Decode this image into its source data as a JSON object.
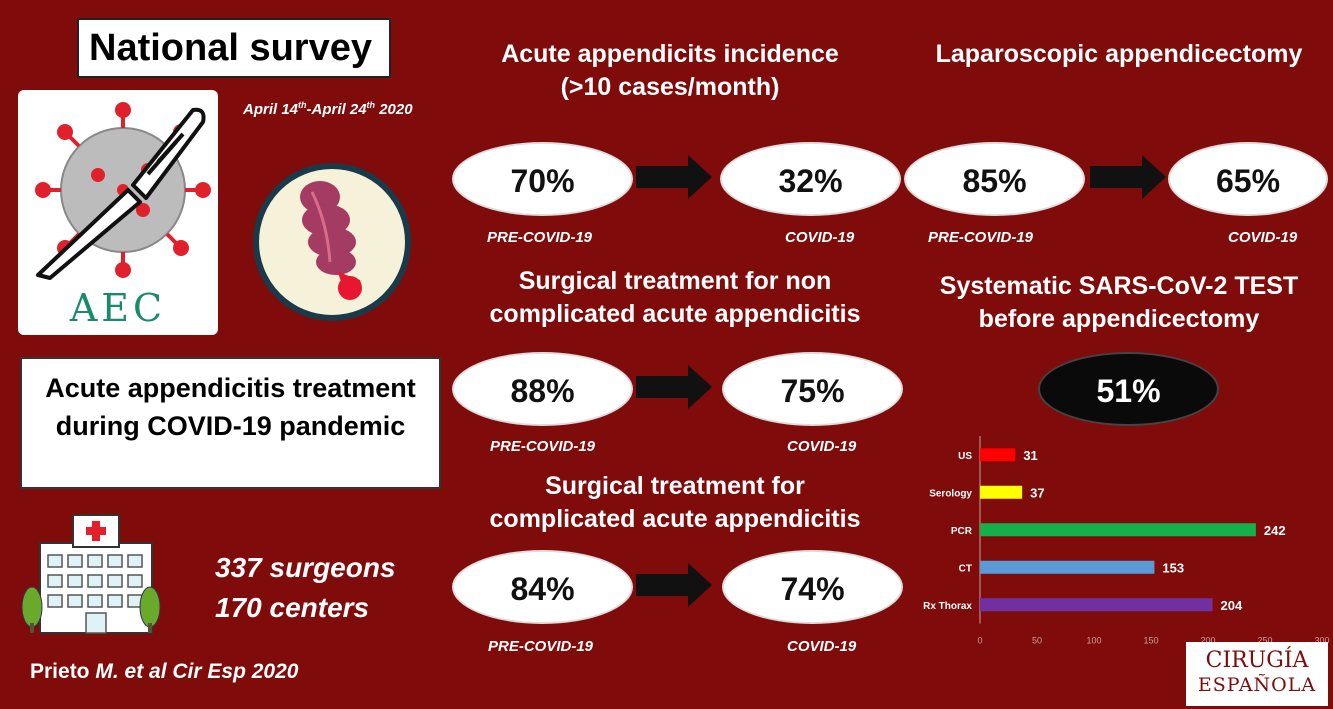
{
  "title": "National survey",
  "dates": {
    "start": "April 14",
    "start_sup": "th",
    "sep": "-April 24",
    "end_sup": "th",
    "year": " 2020"
  },
  "aec_logo_text": "AEC",
  "treatment_box": "Acute appendicitis treatment during COVID-19 pandemic",
  "stats": {
    "surgeons": "337 surgeons",
    "centers": "170 centers"
  },
  "citation": {
    "author": "Prieto ",
    "rest": "M. et al Cir Esp 2020"
  },
  "panels": {
    "incidence": {
      "heading_line1": "Acute appendicits incidence",
      "heading_line2": "(>10 cases/month)",
      "pre": "70%",
      "post": "32%",
      "pre_tag": "PRE-COVID-19",
      "post_tag": "COVID-19"
    },
    "laparoscopic": {
      "heading": "Laparoscopic appendicectomy",
      "pre": "85%",
      "post": "65%",
      "pre_tag": "PRE-COVID-19",
      "post_tag": "COVID-19"
    },
    "non_complicated": {
      "heading_line1": "Surgical treatment for non",
      "heading_line2": "complicated acute appendicitis",
      "pre": "88%",
      "post": "75%",
      "pre_tag": "PRE-COVID-19",
      "post_tag": "COVID-19"
    },
    "complicated": {
      "heading_line1": "Surgical treatment for",
      "heading_line2": "complicated acute appendicitis",
      "pre": "84%",
      "post": "74%",
      "pre_tag": "PRE-COVID-19",
      "post_tag": "COVID-19"
    },
    "sars_test": {
      "heading_line1": "Systematic SARS-CoV-2 TEST",
      "heading_line2": "before appendicectomy",
      "value": "51%"
    }
  },
  "logo": {
    "line1": "CIRUGÍA",
    "line2": "ESPAÑOLA"
  },
  "chart_data": {
    "type": "bar",
    "orientation": "horizontal",
    "categories": [
      "US",
      "Serology",
      "PCR",
      "CT",
      "Rx Thorax"
    ],
    "values": [
      31,
      37,
      242,
      153,
      204
    ],
    "colors": [
      "#ff0000",
      "#ffff00",
      "#13b04d",
      "#5b9bd5",
      "#7030a0"
    ],
    "xlim": [
      0,
      300
    ],
    "xticks": [
      0,
      50,
      100,
      150,
      200,
      250,
      300
    ],
    "grid": false
  }
}
